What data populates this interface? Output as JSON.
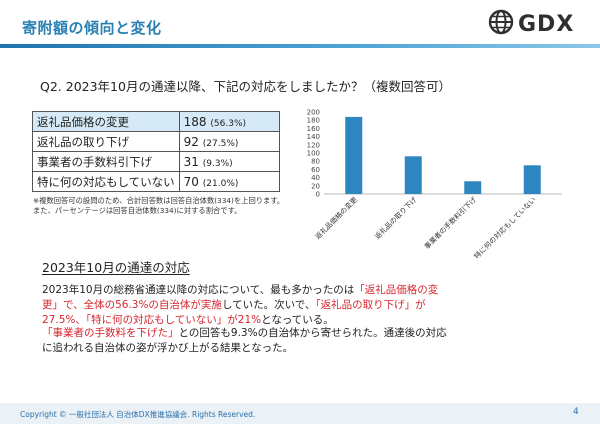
{
  "header": {
    "title": "寄附額の傾向と変化",
    "logo_text": "GDX",
    "logo_icon": "globe-icon"
  },
  "question": "Q2. 2023年10月の通達以降、下記の対応をしましたか？（複数回答可）",
  "table": {
    "rows": [
      {
        "label": "返礼品価格の変更",
        "count": "188",
        "pct": "(56.3%)",
        "highlight": true
      },
      {
        "label": "返礼品の取り下げ",
        "count": "92",
        "pct": "(27.5%)",
        "highlight": false
      },
      {
        "label": "事業者の手数料引下げ",
        "count": "31",
        "pct": "(9.3%)",
        "highlight": false
      },
      {
        "label": "特に何の対応もしていない",
        "count": "70",
        "pct": "(21.0%)",
        "highlight": false
      }
    ]
  },
  "footnote": {
    "line1": "※複数回答可の設問のため、合計回答数は回答自治体数(334)を上回ります。",
    "line2": "また、パーセンテージは回答自治体数(334)に対する割合です。"
  },
  "chart_data": {
    "type": "bar",
    "title": "",
    "xlabel": "",
    "ylabel": "",
    "categories": [
      "返礼品価格の変更",
      "返礼品の取り下げ",
      "事業者の手数料引下げ",
      "特に何の対応もしていない"
    ],
    "values": [
      188,
      92,
      31,
      70
    ],
    "ylim": [
      0,
      200
    ],
    "yticks": [
      0,
      20,
      40,
      60,
      80,
      100,
      120,
      140,
      160,
      180,
      200
    ],
    "grid": false,
    "legend": "none",
    "bar_color": "#2e86c1"
  },
  "section": {
    "title": "2023年10月の通達の対応",
    "para1": {
      "s1": "2023年10月の総務省通達以降の対応について、最も多かったのは",
      "s2": "「返礼品価格の変更」で、全体の56.3%の自治体が実施",
      "s3": "していた。次いで、",
      "s4": "「返礼品の取り下げ」が27.5%、「特に何の対応もしていない」が21%",
      "s5": "となっている。"
    },
    "para2": {
      "s1": "「事業者の手数料を下げた」",
      "s2": "との回答も9.3%の自治体から寄せられた。通達後の対応に追われる自治体の姿が浮かび上がる結果となった。"
    }
  },
  "footer": {
    "copyright": "Copyright © 一般社団法人 自治体DX推進協議会. Rights Reserved.",
    "page": "4"
  }
}
